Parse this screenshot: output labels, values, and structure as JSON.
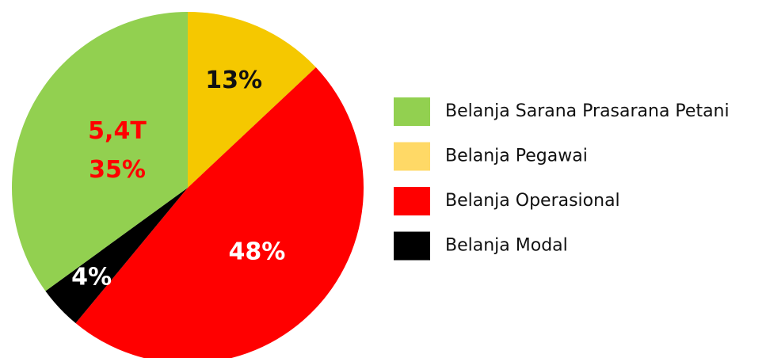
{
  "chart_data": {
    "type": "pie",
    "categories": [
      "Belanja Pegawai",
      "Belanja Operasional",
      "Belanja Modal",
      "Belanja Sarana Prasarana Petani"
    ],
    "values": [
      13,
      48,
      4,
      35
    ],
    "value_labels": [
      "13%",
      "48%",
      "4%",
      "35%"
    ],
    "colors": [
      "#f5c800",
      "#ff0000",
      "#000000",
      "#92d050"
    ],
    "legend_colors": [
      "#ffd966",
      "#ff0000",
      "#000000",
      "#92d050"
    ],
    "label_colors": [
      "#111111",
      "#ffffff",
      "#ffffff",
      "#ff0000"
    ],
    "annotation": "5,4T",
    "legend_order": [
      3,
      0,
      1,
      2
    ],
    "legend": "right"
  }
}
